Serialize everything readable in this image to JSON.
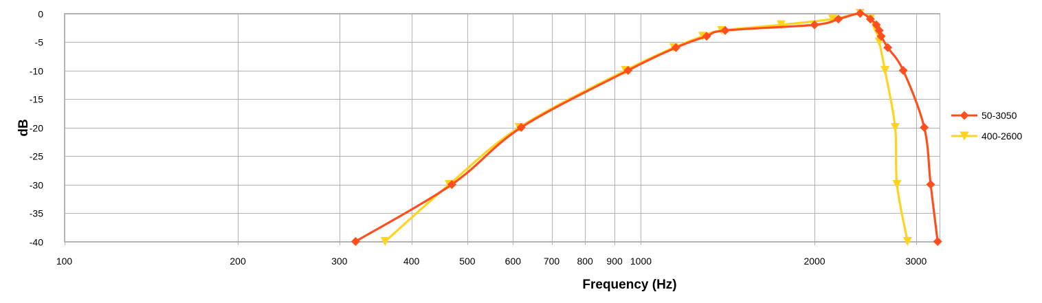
{
  "chart_data": {
    "type": "line",
    "title": "",
    "xlabel": "Frequency (Hz)",
    "ylabel": "dB",
    "x_scale": "log",
    "xlim": [
      100,
      3300
    ],
    "ylim": [
      -40,
      0
    ],
    "x_ticks": [
      100,
      200,
      300,
      400,
      500,
      600,
      700,
      800,
      900,
      1000,
      2000,
      3000
    ],
    "y_ticks": [
      0,
      -5,
      -10,
      -15,
      -20,
      -25,
      -30,
      -35,
      -40
    ],
    "grid": true,
    "legend_position": "right",
    "series": [
      {
        "name": "50-3050",
        "color": "#ff4f1f",
        "marker": "diamond",
        "points": [
          [
            320,
            -40
          ],
          [
            470,
            -30
          ],
          [
            620,
            -20
          ],
          [
            950,
            -10
          ],
          [
            1150,
            -6
          ],
          [
            1300,
            -4
          ],
          [
            1400,
            -3
          ],
          [
            2000,
            -2
          ],
          [
            2200,
            -1
          ],
          [
            2400,
            0
          ],
          [
            2500,
            -1
          ],
          [
            2560,
            -2
          ],
          [
            2590,
            -3
          ],
          [
            2610,
            -4
          ],
          [
            2680,
            -6
          ],
          [
            2850,
            -10
          ],
          [
            3100,
            -20
          ],
          [
            3180,
            -30
          ],
          [
            3270,
            -40
          ]
        ]
      },
      {
        "name": "400-2600",
        "color": "#ffd320",
        "marker": "triangle-down",
        "points": [
          [
            360,
            -40
          ],
          [
            465,
            -30
          ],
          [
            615,
            -20
          ],
          [
            940,
            -10
          ],
          [
            1140,
            -6
          ],
          [
            1280,
            -4
          ],
          [
            1380,
            -3
          ],
          [
            1750,
            -2
          ],
          [
            2150,
            -1
          ],
          [
            2400,
            0
          ],
          [
            2500,
            -1
          ],
          [
            2560,
            -3
          ],
          [
            2590,
            -5
          ],
          [
            2650,
            -10
          ],
          [
            2760,
            -20
          ],
          [
            2780,
            -30
          ],
          [
            2900,
            -40
          ]
        ]
      }
    ]
  }
}
